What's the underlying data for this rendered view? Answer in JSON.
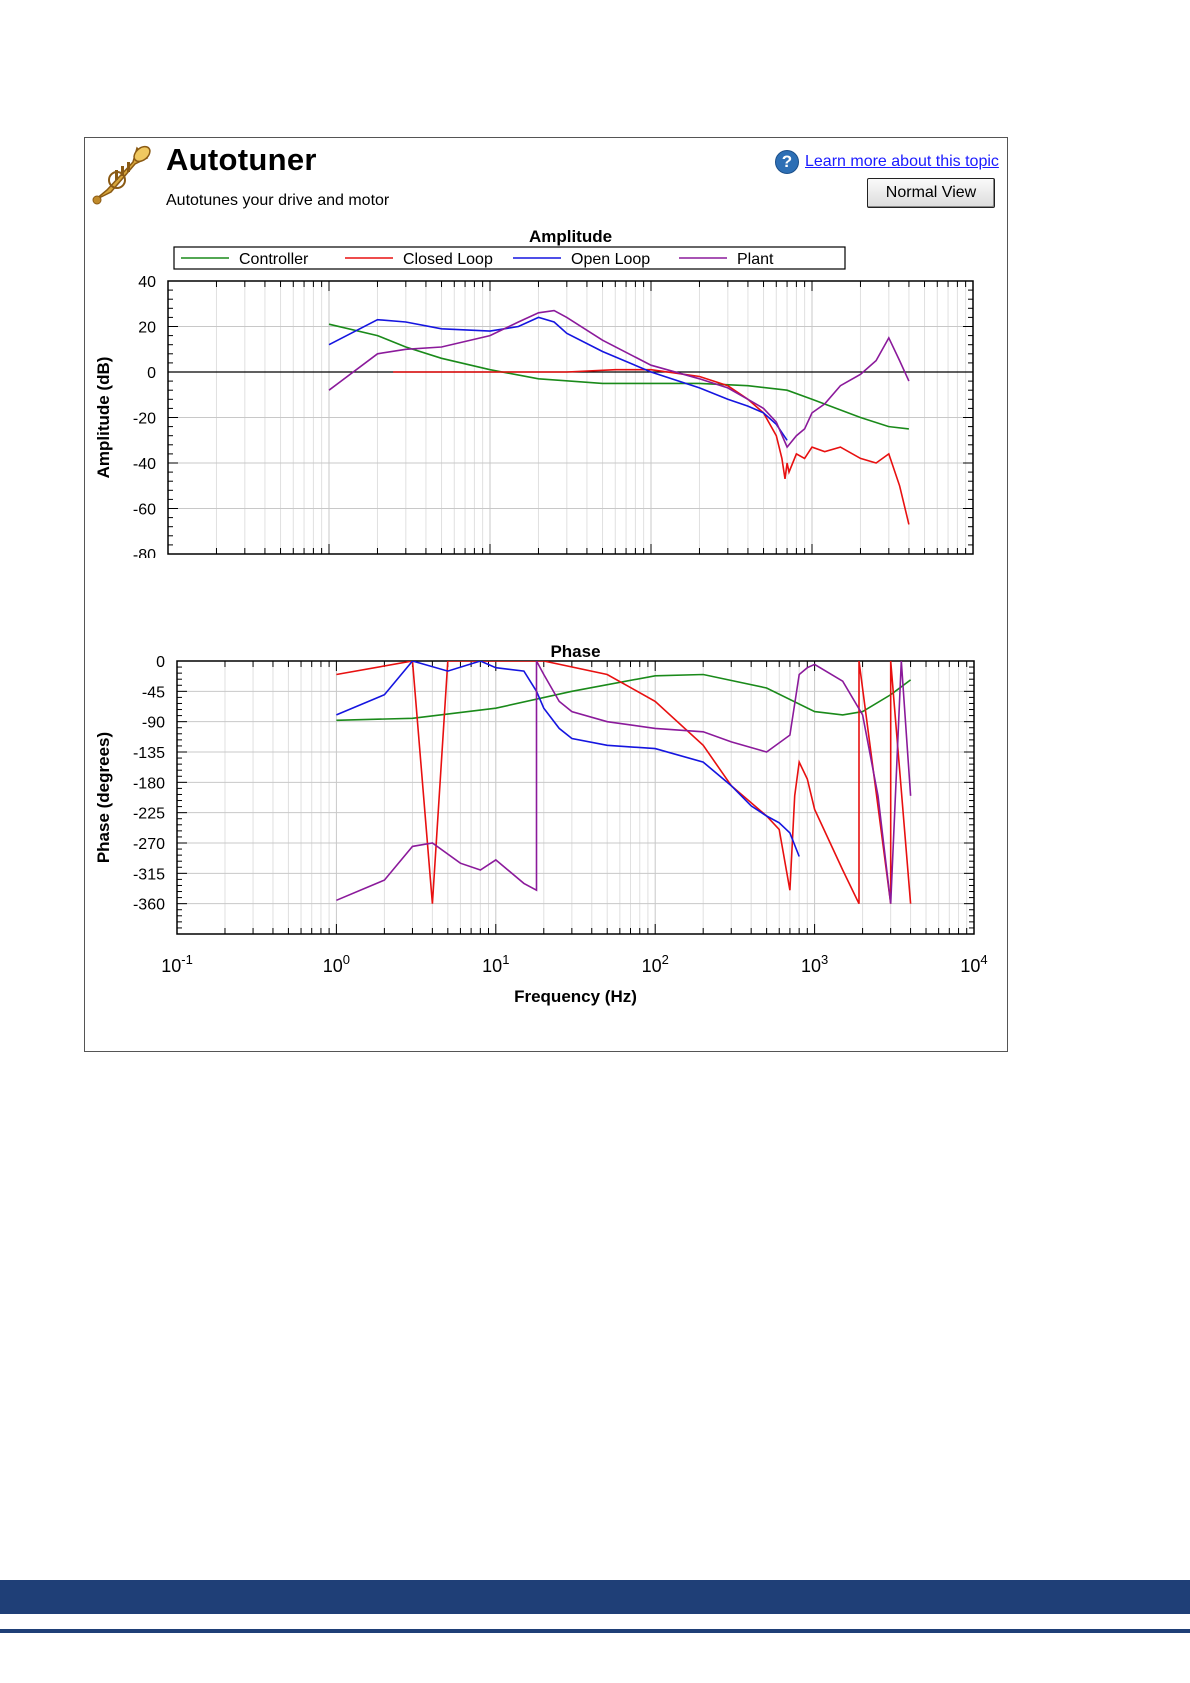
{
  "header": {
    "title": "Autotuner",
    "subtitle": "Autotunes your drive and motor",
    "help_link": "Learn more about this topic",
    "help_icon": "question-circle-icon",
    "app_icon": "trumpet-icon",
    "view_button": "Normal View"
  },
  "colors": {
    "controller": "#1a8a1a",
    "closed_loop": "#e81010",
    "open_loop": "#1515e0",
    "plant": "#8b1a9b",
    "footer": "#1f3f77"
  },
  "chart_data": [
    {
      "type": "line",
      "title": "Amplitude",
      "xlabel": "Frequency (Hz)",
      "ylabel": "Amplitude (dB)",
      "xscale": "log",
      "xlim": [
        0.1,
        10000
      ],
      "ylim": [
        -80,
        40
      ],
      "xticks": [
        {
          "base": "10",
          "exp": "-1"
        },
        {
          "base": "10",
          "exp": "0"
        },
        {
          "base": "10",
          "exp": "1"
        },
        {
          "base": "10",
          "exp": "2"
        },
        {
          "base": "10",
          "exp": "3"
        },
        {
          "base": "10",
          "exp": "4"
        }
      ],
      "yticks": [
        "40",
        "20",
        "0",
        "-20",
        "-40",
        "-60",
        "-80"
      ],
      "grid": true,
      "legend": "top",
      "series": [
        {
          "name": "Controller",
          "color": "#1a8a1a",
          "x": [
            1,
            2,
            3,
            5,
            10,
            20,
            50,
            100,
            200,
            400,
            700,
            1000,
            2000,
            3000,
            4000
          ],
          "y": [
            21,
            16,
            11,
            6,
            1,
            -3,
            -5,
            -5,
            -5,
            -6,
            -8,
            -12,
            -20,
            -24,
            -25
          ]
        },
        {
          "name": "Closed Loop",
          "color": "#e81010",
          "x": [
            2.5,
            10,
            20,
            30,
            60,
            100,
            200,
            300,
            400,
            500,
            600,
            650,
            680,
            700,
            720,
            800,
            900,
            1000,
            1200,
            1500,
            2000,
            2500,
            3000,
            3500,
            4000
          ],
          "y": [
            0,
            0,
            0,
            0,
            1,
            1,
            -2,
            -6,
            -12,
            -18,
            -28,
            -38,
            -47,
            -40,
            -44,
            -36,
            -38,
            -33,
            -35,
            -33,
            -38,
            -40,
            -36,
            -50,
            -67
          ]
        },
        {
          "name": "Open Loop",
          "color": "#1515e0",
          "x": [
            1,
            2,
            3,
            5,
            10,
            15,
            20,
            25,
            30,
            50,
            100,
            200,
            300,
            400,
            500,
            600,
            700
          ],
          "y": [
            12,
            23,
            22,
            19,
            18,
            20,
            24,
            22,
            17,
            9,
            0,
            -7,
            -12,
            -15,
            -18,
            -23,
            -30
          ]
        },
        {
          "name": "Plant",
          "color": "#8b1a9b",
          "x": [
            1,
            2,
            3,
            5,
            10,
            15,
            20,
            25,
            30,
            50,
            100,
            200,
            300,
            400,
            500,
            600,
            700,
            800,
            900,
            1000,
            1200,
            1500,
            2000,
            2500,
            3000,
            3500,
            4000
          ],
          "y": [
            -8,
            8,
            10,
            11,
            16,
            22,
            26,
            27,
            24,
            14,
            3,
            -3,
            -7,
            -12,
            -16,
            -22,
            -33,
            -28,
            -25,
            -18,
            -14,
            -6,
            -1,
            5,
            15,
            5,
            -4
          ]
        }
      ]
    },
    {
      "type": "line",
      "title": "Phase",
      "xlabel": "Frequency (Hz)",
      "ylabel": "Phase (degrees)",
      "xscale": "log",
      "xlim": [
        0.1,
        10000
      ],
      "ylim": [
        -405,
        0
      ],
      "xticks": [
        {
          "base": "10",
          "exp": "-1"
        },
        {
          "base": "10",
          "exp": "0"
        },
        {
          "base": "10",
          "exp": "1"
        },
        {
          "base": "10",
          "exp": "2"
        },
        {
          "base": "10",
          "exp": "3"
        },
        {
          "base": "10",
          "exp": "4"
        }
      ],
      "yticks": [
        "0",
        "-45",
        "-90",
        "-135",
        "-180",
        "-225",
        "-270",
        "-315",
        "-360"
      ],
      "grid": true,
      "series": [
        {
          "name": "Controller",
          "color": "#1a8a1a",
          "x": [
            1,
            3,
            10,
            30,
            100,
            200,
            500,
            1000,
            1500,
            2000,
            3000,
            4000
          ],
          "y": [
            -88,
            -85,
            -70,
            -45,
            -22,
            -20,
            -40,
            -75,
            -80,
            -75,
            -50,
            -28
          ]
        },
        {
          "name": "Closed Loop",
          "color": "#e81010",
          "x": [
            1,
            3,
            4,
            5,
            20,
            50,
            100,
            200,
            300,
            500,
            600,
            700,
            750,
            800,
            900,
            1000,
            1500,
            1900,
            1900,
            3000,
            3000,
            4000
          ],
          "y": [
            -20,
            0,
            -360,
            0,
            0,
            -20,
            -60,
            -125,
            -185,
            -230,
            -250,
            -340,
            -200,
            -150,
            -175,
            -220,
            -310,
            -360,
            0,
            -360,
            0,
            -360
          ]
        },
        {
          "name": "Open Loop",
          "color": "#1515e0",
          "x": [
            1,
            2,
            3,
            5,
            8,
            10,
            15,
            18,
            20,
            25,
            30,
            50,
            100,
            200,
            300,
            400,
            500,
            600,
            700,
            800
          ],
          "y": [
            -80,
            -50,
            0,
            -15,
            0,
            -10,
            -15,
            -45,
            -70,
            -100,
            -115,
            -125,
            -130,
            -150,
            -185,
            -215,
            -230,
            -240,
            -255,
            -290
          ]
        },
        {
          "name": "Plant",
          "color": "#8b1a9b",
          "x": [
            1,
            2,
            3,
            4,
            6,
            8,
            10,
            15,
            18,
            18,
            20,
            25,
            30,
            50,
            100,
            200,
            300,
            500,
            700,
            800,
            900,
            1000,
            1500,
            2000,
            2500,
            3000,
            3500,
            4000
          ],
          "y": [
            -355,
            -325,
            -275,
            -270,
            -300,
            -310,
            -295,
            -330,
            -340,
            0,
            -20,
            -60,
            -75,
            -90,
            -100,
            -105,
            -120,
            -135,
            -110,
            -20,
            -10,
            -5,
            -30,
            -80,
            -200,
            -360,
            0,
            -200
          ]
        }
      ]
    }
  ],
  "amplitude_legend": [
    {
      "label": "Controller",
      "color": "#1a8a1a"
    },
    {
      "label": "Closed Loop",
      "color": "#e81010"
    },
    {
      "label": "Open Loop",
      "color": "#1515e0"
    },
    {
      "label": "Plant",
      "color": "#8b1a9b"
    }
  ]
}
